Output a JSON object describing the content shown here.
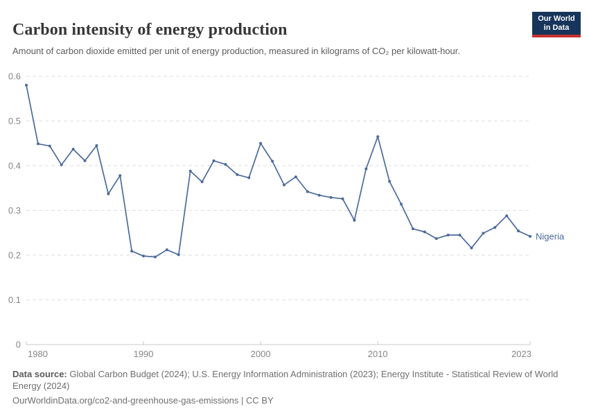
{
  "header": {
    "title": "Carbon intensity of energy production",
    "subtitle": "Amount of carbon dioxide emitted per unit of energy production, measured in kilograms of CO₂ per kilowatt-hour.",
    "logo": {
      "line1": "Our World",
      "line2": "in Data",
      "bg_color": "#17355b",
      "stripe_color": "#c5312d"
    }
  },
  "chart_data": {
    "type": "line",
    "title": "Carbon intensity of energy production",
    "xlabel": "",
    "ylabel": "kilograms of CO₂ per kilowatt-hour",
    "ylim": [
      0,
      0.6
    ],
    "yticks": [
      0,
      0.1,
      0.2,
      0.3,
      0.4,
      0.5,
      0.6
    ],
    "xticks": [
      1980,
      1990,
      2000,
      2010,
      2023
    ],
    "grid": true,
    "grid_style": "dashed",
    "legend_position": "end-of-line-label",
    "colors": {
      "gridline": "#dedede",
      "axis": "#c8c8c8",
      "tick_label": "#868686"
    },
    "series": [
      {
        "name": "Nigeria",
        "color": "#4c6a9c",
        "x": [
          1980,
          1981,
          1982,
          1983,
          1984,
          1985,
          1986,
          1987,
          1988,
          1989,
          1990,
          1991,
          1992,
          1993,
          1994,
          1995,
          1996,
          1997,
          1998,
          1999,
          2000,
          2001,
          2002,
          2003,
          2004,
          2005,
          2006,
          2007,
          2008,
          2009,
          2010,
          2011,
          2012,
          2013,
          2014,
          2015,
          2016,
          2017,
          2018,
          2019,
          2020,
          2021,
          2022,
          2023
        ],
        "values": [
          0.58,
          0.449,
          0.444,
          0.402,
          0.437,
          0.411,
          0.445,
          0.337,
          0.378,
          0.209,
          0.198,
          0.196,
          0.212,
          0.201,
          0.388,
          0.364,
          0.411,
          0.403,
          0.38,
          0.373,
          0.45,
          0.41,
          0.357,
          0.375,
          0.342,
          0.334,
          0.329,
          0.326,
          0.278,
          0.393,
          0.465,
          0.365,
          0.314,
          0.259,
          0.252,
          0.237,
          0.245,
          0.245,
          0.216,
          0.249,
          0.262,
          0.288,
          0.254,
          0.242
        ]
      }
    ]
  },
  "footer": {
    "datasource_label": "Data source:",
    "datasource_text": " Global Carbon Budget (2024); U.S. Energy Information Administration (2023); Energy Institute - Statistical Review of World Energy (2024)",
    "license_text": "OurWorldinData.org/co2-and-greenhouse-gas-emissions | CC BY"
  }
}
